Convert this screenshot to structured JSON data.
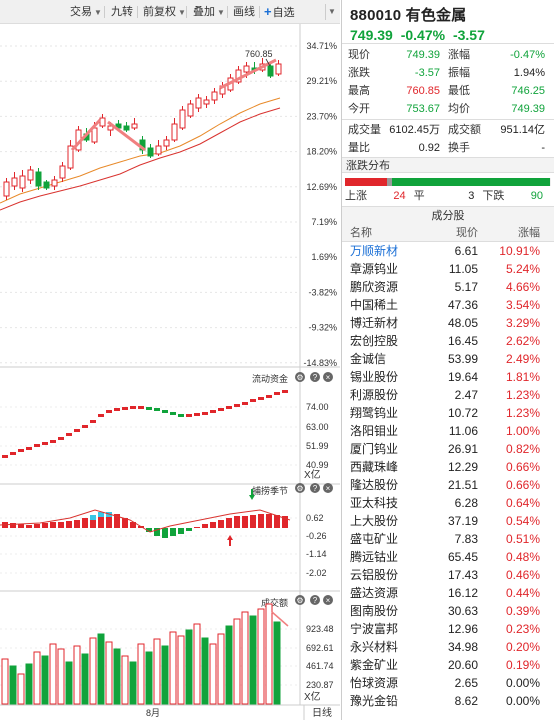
{
  "toolbar": {
    "items": [
      {
        "label": "交易",
        "dropdown": true
      },
      {
        "label": "九转",
        "dropdown": false
      },
      {
        "label": "前复权",
        "dropdown": true
      },
      {
        "label": "叠加",
        "dropdown": true
      },
      {
        "label": "画线",
        "dropdown": false
      }
    ],
    "watchlist_label": "自选"
  },
  "kline": {
    "high_marker": "760.85",
    "pct_ticks": [
      "34.71%",
      "29.21%",
      "23.70%",
      "18.20%",
      "12.69%",
      "7.19%",
      "1.69%",
      "-3.82%",
      "-9.32%",
      "-14.83%"
    ],
    "month_label": "8月",
    "period_button": "日线"
  },
  "fund_flow": {
    "title": "流动资金",
    "ticks": [
      "74.00",
      "63.00",
      "51.99",
      "40.99"
    ],
    "unit": "X亿"
  },
  "indicator": {
    "title": "捕捞季节",
    "ticks": [
      "0.62",
      "-0.26",
      "-1.14",
      "-2.02"
    ]
  },
  "volume": {
    "title": "成交额",
    "ticks": [
      "923.48",
      "692.61",
      "461.74",
      "230.87"
    ],
    "unit": "X亿"
  },
  "quote": {
    "code": "880010",
    "name": "有色金属",
    "price": "749.39",
    "change_pct": "-0.47%",
    "change": "-3.57",
    "rows": [
      {
        "l1": "现价",
        "v1": "749.39",
        "c1": "green",
        "l2": "涨幅",
        "v2": "-0.47%",
        "c2": "green"
      },
      {
        "l1": "涨跌",
        "v1": "-3.57",
        "c1": "green",
        "l2": "振幅",
        "v2": "1.94%",
        "c2": "dark"
      },
      {
        "l1": "最高",
        "v1": "760.85",
        "c1": "red",
        "l2": "最低",
        "v2": "746.25",
        "c2": "green"
      },
      {
        "l1": "今开",
        "v1": "753.67",
        "c1": "green",
        "l2": "均价",
        "v2": "749.39",
        "c2": "green"
      }
    ],
    "rows2": [
      {
        "l1": "成交量",
        "v1": "6102.45万",
        "c1": "dark",
        "l2": "成交额",
        "v2": "951.14亿",
        "c2": "dark"
      },
      {
        "l1": "量比",
        "v1": "0.92",
        "c1": "dark",
        "l2": "换手",
        "v2": "-",
        "c2": "dark"
      }
    ]
  },
  "distribution": {
    "title": "涨跌分布",
    "up_label": "上涨",
    "up": "24",
    "flat_label": "平",
    "flat": "3",
    "down_label": "下跌",
    "down": "90",
    "up_count": 24,
    "flat_count": 3,
    "down_count": 90
  },
  "constituents": {
    "title": "成分股",
    "headers": [
      "名称",
      "现价",
      "涨幅"
    ],
    "rows": [
      [
        "万顺新材",
        "6.61",
        "10.91%"
      ],
      [
        "章源钨业",
        "11.05",
        "5.24%"
      ],
      [
        "鹏欣资源",
        "5.17",
        "4.66%"
      ],
      [
        "中国稀土",
        "47.36",
        "3.54%"
      ],
      [
        "博迁新材",
        "48.05",
        "3.29%"
      ],
      [
        "宏创控股",
        "16.45",
        "2.62%"
      ],
      [
        "金诚信",
        "53.99",
        "2.49%"
      ],
      [
        "锡业股份",
        "19.64",
        "1.81%"
      ],
      [
        "利源股份",
        "2.47",
        "1.23%"
      ],
      [
        "翔鹭钨业",
        "10.72",
        "1.23%"
      ],
      [
        "洛阳钼业",
        "11.06",
        "1.00%"
      ],
      [
        "厦门钨业",
        "26.91",
        "0.82%"
      ],
      [
        "西藏珠峰",
        "12.29",
        "0.66%"
      ],
      [
        "隆达股份",
        "21.51",
        "0.66%"
      ],
      [
        "亚太科技",
        "6.28",
        "0.64%"
      ],
      [
        "上大股份",
        "37.19",
        "0.54%"
      ],
      [
        "盛屯矿业",
        "7.83",
        "0.51%"
      ],
      [
        "腾远钴业",
        "65.45",
        "0.48%"
      ],
      [
        "云铝股份",
        "17.43",
        "0.46%"
      ],
      [
        "盛达资源",
        "16.12",
        "0.44%"
      ],
      [
        "图南股份",
        "30.63",
        "0.39%"
      ],
      [
        "宁波富邦",
        "12.96",
        "0.23%"
      ],
      [
        "永兴材料",
        "34.98",
        "0.20%"
      ],
      [
        "紫金矿业",
        "20.60",
        "0.19%"
      ],
      [
        "怡球资源",
        "2.65",
        "0.00%"
      ],
      [
        "豫光金铅",
        "8.62",
        "0.00%"
      ]
    ]
  },
  "colors": {
    "up": "#e0262b",
    "down": "#10a33b",
    "link": "#1a6fd6",
    "flat": "#999999"
  }
}
